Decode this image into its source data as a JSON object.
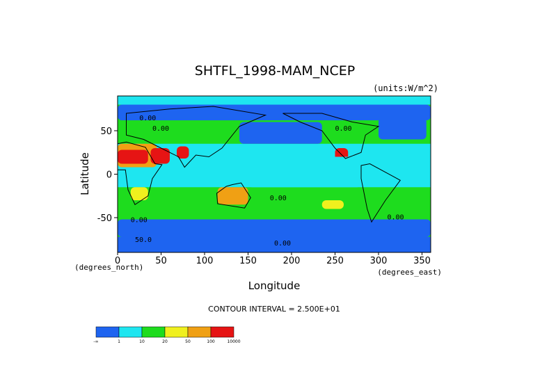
{
  "chart_data": {
    "type": "heatmap",
    "title": "SHTFL_1998-MAM_NCEP",
    "units": "(units:W/m^2)",
    "xlabel": "Longitude",
    "ylabel": "Latitude",
    "xlim": [
      0,
      360
    ],
    "ylim": [
      -90,
      90
    ],
    "x_ticks": [
      0,
      50,
      100,
      150,
      200,
      250,
      300,
      350
    ],
    "y_ticks": [
      50,
      0,
      -50
    ],
    "x_unit_left": "(degrees_north)",
    "x_unit_right": "(degrees_east)",
    "contour_interval_label": "CONTOUR INTERVAL = 2.500E+01",
    "contour_labels": [
      "0.00",
      "0.00",
      "0.00",
      "0.00",
      "0.00",
      "0.00",
      "50.0",
      "0.00"
    ],
    "colorbar": {
      "colors": [
        "#1e64f0",
        "#1ee6f0",
        "#1edc1e",
        "#f0f01e",
        "#f0a014",
        "#e61414"
      ],
      "tick_labels": [
        "-∞",
        "1",
        "10",
        "20",
        "50",
        "100",
        "10000"
      ]
    },
    "regions": [
      {
        "name": "southern-ocean-band",
        "lon": [
          0,
          360
        ],
        "lat": [
          -72,
          -52
        ],
        "level": 0
      },
      {
        "name": "arctic-band",
        "lon": [
          0,
          360
        ],
        "lat": [
          62,
          80
        ],
        "level": 0
      },
      {
        "name": "north-pacific",
        "lon": [
          140,
          235
        ],
        "lat": [
          35,
          60
        ],
        "level": 0
      },
      {
        "name": "north-atlantic",
        "lon": [
          300,
          355
        ],
        "lat": [
          40,
          65
        ],
        "level": 0
      },
      {
        "name": "sahara",
        "lon": [
          0,
          45
        ],
        "lat": [
          8,
          35
        ],
        "level": 4
      },
      {
        "name": "sahara-core",
        "lon": [
          0,
          35
        ],
        "lat": [
          12,
          28
        ],
        "level": 5
      },
      {
        "name": "arabia",
        "lon": [
          38,
          60
        ],
        "lat": [
          12,
          30
        ],
        "level": 5
      },
      {
        "name": "thar-india",
        "lon": [
          68,
          82
        ],
        "lat": [
          18,
          32
        ],
        "level": 5
      },
      {
        "name": "mexico",
        "lon": [
          250,
          265
        ],
        "lat": [
          15,
          30
        ],
        "level": 5
      },
      {
        "name": "australia",
        "lon": [
          115,
          150
        ],
        "lat": [
          -35,
          -15
        ],
        "level": 4
      },
      {
        "name": "southern-africa",
        "lon": [
          15,
          35
        ],
        "lat": [
          -30,
          -15
        ],
        "level": 3
      },
      {
        "name": "south-pacific-yellow",
        "lon": [
          235,
          260
        ],
        "lat": [
          -40,
          -30
        ],
        "level": 3
      },
      {
        "name": "tropical-pacific",
        "lon": [
          150,
          280
        ],
        "lat": [
          -15,
          20
        ],
        "level": 1
      }
    ]
  }
}
